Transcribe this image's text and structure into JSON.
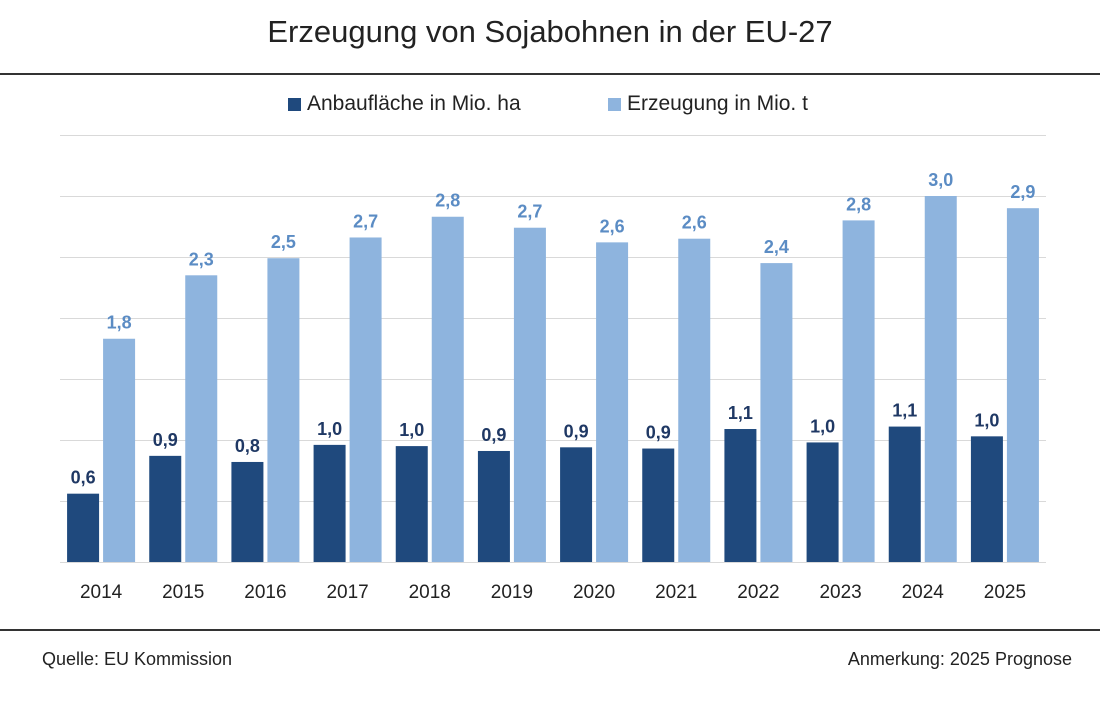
{
  "title": "Erzeugung von Sojabohnen in der EU-27",
  "legend": {
    "area_label": "Anbaufläche in Mio. ha",
    "production_label": "Erzeugung in Mio. t"
  },
  "colors": {
    "area": "#1f497d",
    "production": "#8eb4de",
    "area_label": "#1f3864",
    "production_label": "#5b8cc4",
    "grid": "#d9d9d9"
  },
  "footer": {
    "source": "Quelle:  EU Kommission",
    "note": "Anmerkung: 2025 Prognose"
  },
  "chart_data": {
    "type": "bar",
    "title": "Erzeugung von Sojabohnen in der EU-27",
    "categories": [
      "2014",
      "2015",
      "2016",
      "2017",
      "2018",
      "2019",
      "2020",
      "2021",
      "2022",
      "2023",
      "2024",
      "2025"
    ],
    "series": [
      {
        "name": "Anbaufläche in Mio. ha",
        "values": [
          0.56,
          0.87,
          0.82,
          0.96,
          0.95,
          0.91,
          0.94,
          0.93,
          1.09,
          0.98,
          1.11,
          1.03
        ],
        "labels": [
          "0,6",
          "0,9",
          "0,8",
          "1,0",
          "1,0",
          "0,9",
          "0,9",
          "0,9",
          "1,1",
          "1,0",
          "1,1",
          "1,0"
        ]
      },
      {
        "name": "Erzeugung in Mio. t",
        "values": [
          1.83,
          2.35,
          2.49,
          2.66,
          2.83,
          2.74,
          2.62,
          2.65,
          2.45,
          2.8,
          3.0,
          2.9
        ],
        "labels": [
          "1,8",
          "2,3",
          "2,5",
          "2,7",
          "2,8",
          "2,7",
          "2,6",
          "2,6",
          "2,4",
          "2,8",
          "3,0",
          "2,9"
        ]
      }
    ],
    "ylim": [
      0,
      3.5
    ],
    "grid": true,
    "legend_position": "top-center",
    "xlabel": "",
    "ylabel": ""
  }
}
